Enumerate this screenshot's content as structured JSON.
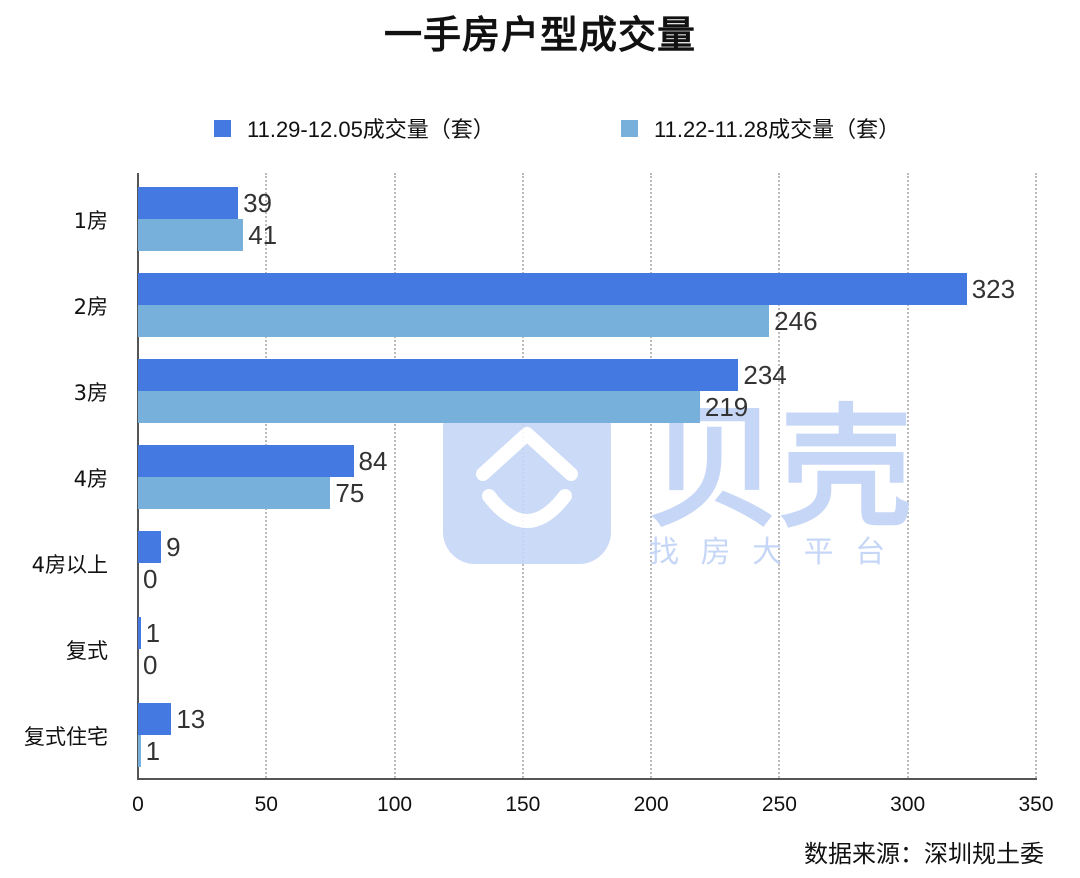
{
  "title": "一手房户型成交量",
  "legend": [
    {
      "label": "11.29-12.05成交量（套）",
      "color": "#4479e1"
    },
    {
      "label": "11.22-11.28成交量（套）",
      "color": "#76b0db"
    }
  ],
  "source": "数据来源：深圳规土委",
  "watermark": {
    "brand": "贝壳",
    "slogan": "找 房 大 平 台",
    "color": "#c6d6f7"
  },
  "chart_data": {
    "type": "bar",
    "orientation": "horizontal",
    "title": "一手房户型成交量",
    "categories": [
      "1房",
      "2房",
      "3房",
      "4房",
      "4房以上",
      "复式",
      "复式住宅"
    ],
    "series": [
      {
        "name": "11.29-12.05成交量（套）",
        "color": "#4479e1",
        "values": [
          39,
          323,
          234,
          84,
          9,
          1,
          13
        ]
      },
      {
        "name": "11.22-11.28成交量（套）",
        "color": "#76b0db",
        "values": [
          41,
          246,
          219,
          75,
          0,
          0,
          1
        ]
      }
    ],
    "xlabel": "",
    "ylabel": "",
    "xlim": [
      0,
      350
    ],
    "xticks": [
      "0",
      "50",
      "100",
      "150",
      "200",
      "250",
      "300",
      "350"
    ],
    "grid": "vertical dotted",
    "legend_position": "top",
    "data_labels": true,
    "source": "数据来源：深圳规土委"
  }
}
